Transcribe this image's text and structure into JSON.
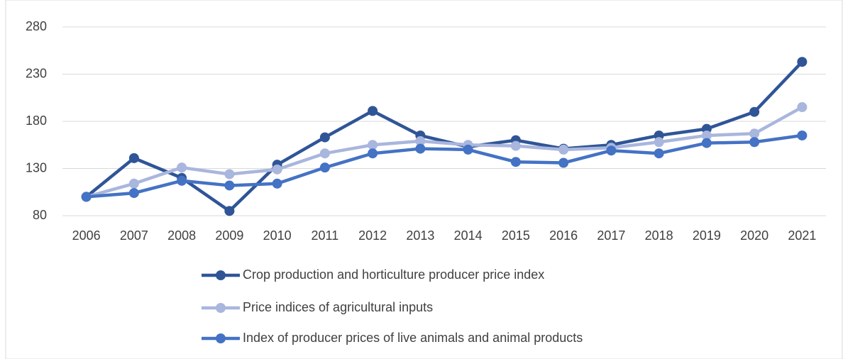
{
  "chart_data": {
    "type": "line",
    "categories": [
      "2006",
      "2007",
      "2008",
      "2009",
      "2010",
      "2011",
      "2012",
      "2013",
      "2014",
      "2015",
      "2016",
      "2017",
      "2018",
      "2019",
      "2020",
      "2021"
    ],
    "series": [
      {
        "name": "Crop production and horticulture producer price index",
        "color": "#2f5597",
        "values": [
          100,
          141,
          120,
          85,
          134,
          163,
          191,
          165,
          153,
          160,
          151,
          155,
          165,
          172,
          190,
          243
        ]
      },
      {
        "name": "Price indices of agricultural inputs",
        "color": "#a9b6dd",
        "values": [
          100,
          114,
          131,
          124,
          129,
          146,
          155,
          159,
          155,
          154,
          150,
          152,
          158,
          165,
          167,
          195
        ]
      },
      {
        "name": "Index of producer prices of live animals and animal products",
        "color": "#4472c4",
        "values": [
          100,
          104,
          117,
          112,
          114,
          131,
          146,
          151,
          150,
          137,
          136,
          149,
          146,
          157,
          158,
          165
        ]
      }
    ],
    "ylim": [
      80,
      280
    ],
    "yticks": [
      80,
      130,
      180,
      230,
      280
    ],
    "grid": true,
    "legend": "bottom"
  }
}
